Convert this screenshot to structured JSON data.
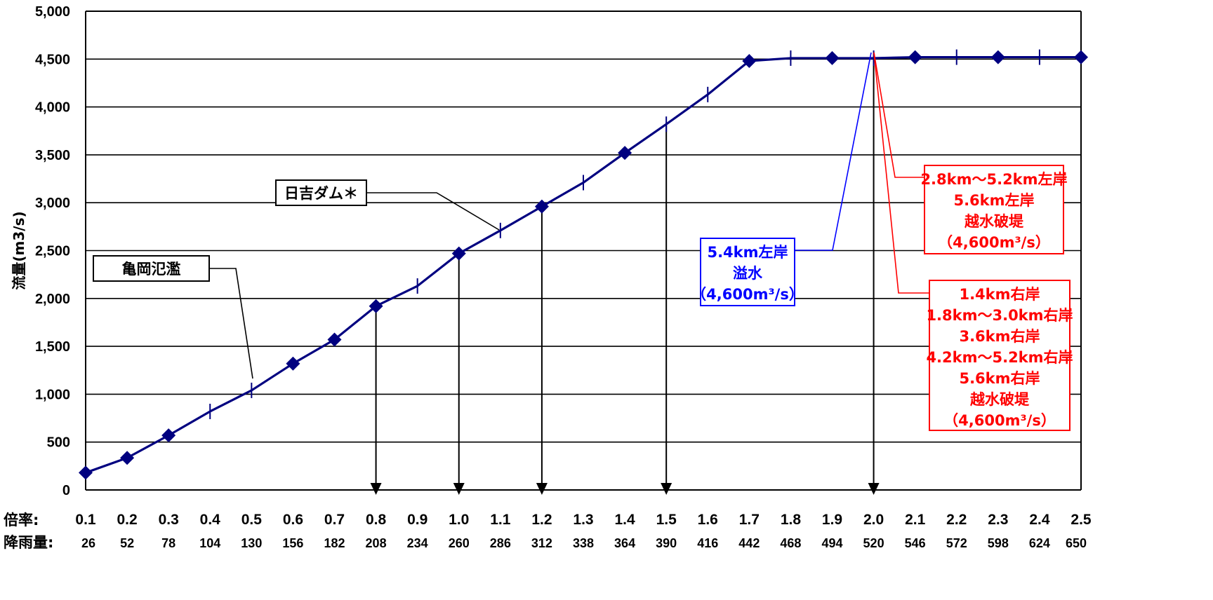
{
  "chart_data": {
    "type": "line",
    "ylabel": "流量(m3/s)",
    "ylim": [
      0,
      5000
    ],
    "y_ticks": [
      "5,000",
      "4,500",
      "4,000",
      "3,500",
      "3,000",
      "2,500",
      "2,000",
      "1,500",
      "1,000",
      "500",
      "0"
    ],
    "grid": true,
    "x_row_label": "倍率:",
    "rain_row_label": "降雨量:",
    "x_labels": [
      "0.1",
      "0.2",
      "0.3",
      "0.4",
      "0.5",
      "0.6",
      "0.7",
      "0.8",
      "0.9",
      "1.0",
      "1.1",
      "1.2",
      "1.3",
      "1.4",
      "1.5",
      "1.6",
      "1.7",
      "1.8",
      "1.9",
      "2.0",
      "2.1",
      "2.2",
      "2.3",
      "2.4",
      "2.5"
    ],
    "rain_labels": [
      "26",
      "52",
      "78",
      "104",
      "130",
      "156",
      "182",
      "208",
      "234",
      "260",
      "286",
      "312",
      "338",
      "364",
      "390",
      "416",
      "442",
      "468",
      "494",
      "520",
      "546",
      "572",
      "598",
      "624",
      "650"
    ],
    "x": [
      0.1,
      0.2,
      0.3,
      0.4,
      0.5,
      0.6,
      0.7,
      0.8,
      0.9,
      1.0,
      1.1,
      1.2,
      1.3,
      1.4,
      1.5,
      1.6,
      1.7,
      1.8,
      1.9,
      2.0,
      2.1,
      2.2,
      2.3,
      2.4,
      2.5
    ],
    "series": [
      {
        "values": [
          180,
          335,
          570,
          820,
          1040,
          1320,
          1570,
          1920,
          2130,
          2470,
          2710,
          2960,
          3210,
          3520,
          3820,
          4130,
          4480,
          4510,
          4510,
          4510,
          4520,
          4520,
          4520,
          4520,
          4520
        ],
        "markers": [
          true,
          true,
          true,
          false,
          false,
          true,
          true,
          true,
          false,
          true,
          false,
          true,
          false,
          true,
          false,
          false,
          true,
          false,
          true,
          false,
          true,
          false,
          true,
          false,
          true
        ],
        "color": "#000080"
      }
    ],
    "arrows_at_x": [
      "0.8",
      "1.0",
      "1.2",
      "1.5",
      "2.0"
    ],
    "annotations": [
      {
        "lines": [
          "亀岡氾濫"
        ],
        "color": "#000000",
        "points_to": "0.5"
      },
      {
        "lines": [
          "日吉ダム＊"
        ],
        "color": "#000000",
        "points_to": "1.1"
      },
      {
        "lines": [
          "5.4km左岸",
          "溢水",
          "（4,600m³/s）"
        ],
        "color": "#0000ff",
        "points_to": "2.0"
      },
      {
        "lines": [
          "2.8km～5.2km左岸",
          "5.6km左岸",
          "越水破堤",
          "（4,600m³/s）"
        ],
        "color": "#ff0000",
        "points_to": "2.0"
      },
      {
        "lines": [
          "1.4km右岸",
          "1.8km～3.0km右岸",
          "3.6km右岸",
          "4.2km～5.2km右岸",
          "5.6km右岸",
          "越水破堤",
          "（4,600m³/s）"
        ],
        "color": "#ff0000",
        "points_to": "2.0"
      }
    ]
  }
}
